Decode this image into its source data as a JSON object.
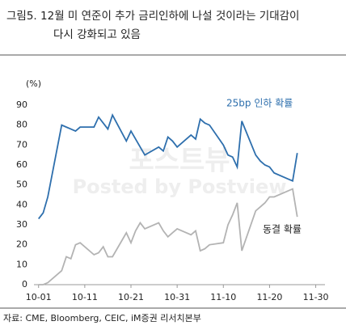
{
  "chart_data": {
    "type": "line",
    "title": "그림5.  12월 미 연준이 추가 금리인하에 나설 것이라는 기대감이",
    "subtitle": "다시 강화되고 있음",
    "y_unit": "(%)",
    "source": "자료: CME, Bloomberg, CEIC, iM증권 리서치본부",
    "watermark": [
      "포스트뷰",
      "Posted by Postview"
    ],
    "x": [
      "10-01",
      "10-02",
      "10-03",
      "10-06",
      "10-07",
      "10-08",
      "10-09",
      "10-10",
      "10-13",
      "10-14",
      "10-15",
      "10-16",
      "10-17",
      "10-20",
      "10-21",
      "10-22",
      "10-23",
      "10-24",
      "10-27",
      "10-28",
      "10-29",
      "10-30",
      "10-31",
      "11-03",
      "11-04",
      "11-05",
      "11-06",
      "11-07",
      "11-10",
      "11-11",
      "11-12",
      "11-13",
      "11-14",
      "11-17",
      "11-18",
      "11-19",
      "11-20",
      "11-21",
      "11-24",
      "11-25",
      "11-26"
    ],
    "series": [
      {
        "name": "25bp 인하 확률",
        "color": "#2e6fad",
        "values": [
          33,
          36,
          44,
          80,
          79,
          78,
          77,
          79,
          79,
          84,
          81,
          78,
          85,
          72,
          77,
          73,
          69,
          65,
          69,
          67,
          74,
          72,
          69,
          75,
          73,
          83,
          81,
          80,
          70,
          65,
          64,
          59,
          82,
          65,
          62,
          60,
          59,
          56,
          53,
          52,
          66
        ]
      },
      {
        "name": "동결 확률",
        "color": "#b3b3b3",
        "values": [
          0,
          0,
          1,
          7,
          14,
          13,
          20,
          21,
          15,
          16,
          19,
          14,
          14,
          26,
          21,
          27,
          31,
          28,
          31,
          27,
          24,
          26,
          28,
          25,
          27,
          17,
          18,
          20,
          21,
          30,
          35,
          41,
          17,
          37,
          39,
          41,
          44,
          44,
          47,
          48,
          34
        ]
      }
    ],
    "xlim": [
      "09-30",
      "12-02"
    ],
    "xticks": [
      "10-01",
      "10-11",
      "10-21",
      "10-31",
      "11-10",
      "11-20",
      "11-30"
    ],
    "ylim": [
      0,
      90
    ],
    "yticks": [
      0,
      10,
      20,
      30,
      40,
      50,
      60,
      70,
      80,
      90
    ],
    "grid": false
  }
}
